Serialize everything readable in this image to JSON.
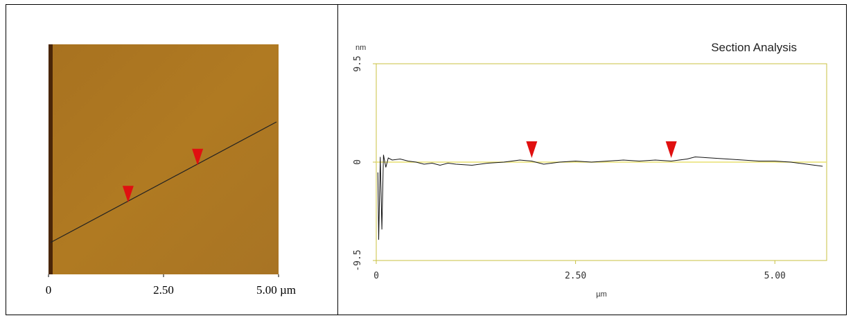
{
  "chart_data": [
    {
      "type": "image",
      "xlim": [
        0,
        5
      ],
      "xticks": [
        0,
        {
          "value": 2.5,
          "label": "2.50"
        },
        {
          "value": 5,
          "label": "5.00 µm"
        }
      ],
      "markers": [
        1.73,
        3.24
      ],
      "marker_color": "#e01010"
    },
    {
      "type": "line",
      "title": "Section Analysis",
      "ylabel": "nm",
      "xlabel": "µm",
      "xlim": [
        0,
        5.65
      ],
      "ylim": [
        -9.5,
        9.5
      ],
      "xticks": [
        0,
        {
          "value": 2.5,
          "label": "2.50"
        },
        {
          "value": 5,
          "label": "5.00"
        }
      ],
      "yticks": [
        -9.5,
        0,
        9.5
      ],
      "series": [
        {
          "color": "#111111",
          "x": [
            0.02,
            0.03,
            0.05,
            0.07,
            0.09,
            0.12,
            0.15,
            0.2,
            0.3,
            0.4,
            0.5,
            0.6,
            0.7,
            0.8,
            0.9,
            1.0,
            1.2,
            1.4,
            1.6,
            1.8,
            1.95,
            2.1,
            2.3,
            2.5,
            2.7,
            2.9,
            3.1,
            3.3,
            3.5,
            3.7,
            3.9,
            4.0,
            4.2,
            4.4,
            4.6,
            4.8,
            5.0,
            5.2,
            5.4,
            5.6
          ],
          "values": [
            -1,
            -7.5,
            0.5,
            -6.5,
            0.7,
            -0.5,
            0.4,
            0.2,
            0.3,
            0.1,
            0,
            -0.2,
            -0.1,
            -0.3,
            -0.1,
            -0.2,
            -0.3,
            -0.1,
            0,
            0.2,
            0.1,
            -0.2,
            0,
            0.1,
            0,
            0.1,
            0.2,
            0.1,
            0.2,
            0.1,
            0.3,
            0.5,
            0.4,
            0.3,
            0.2,
            0.1,
            0.1,
            0,
            -0.2,
            -0.4
          ]
        }
      ],
      "markers": [
        1.95,
        3.7
      ],
      "marker_color": "#e01010"
    }
  ]
}
